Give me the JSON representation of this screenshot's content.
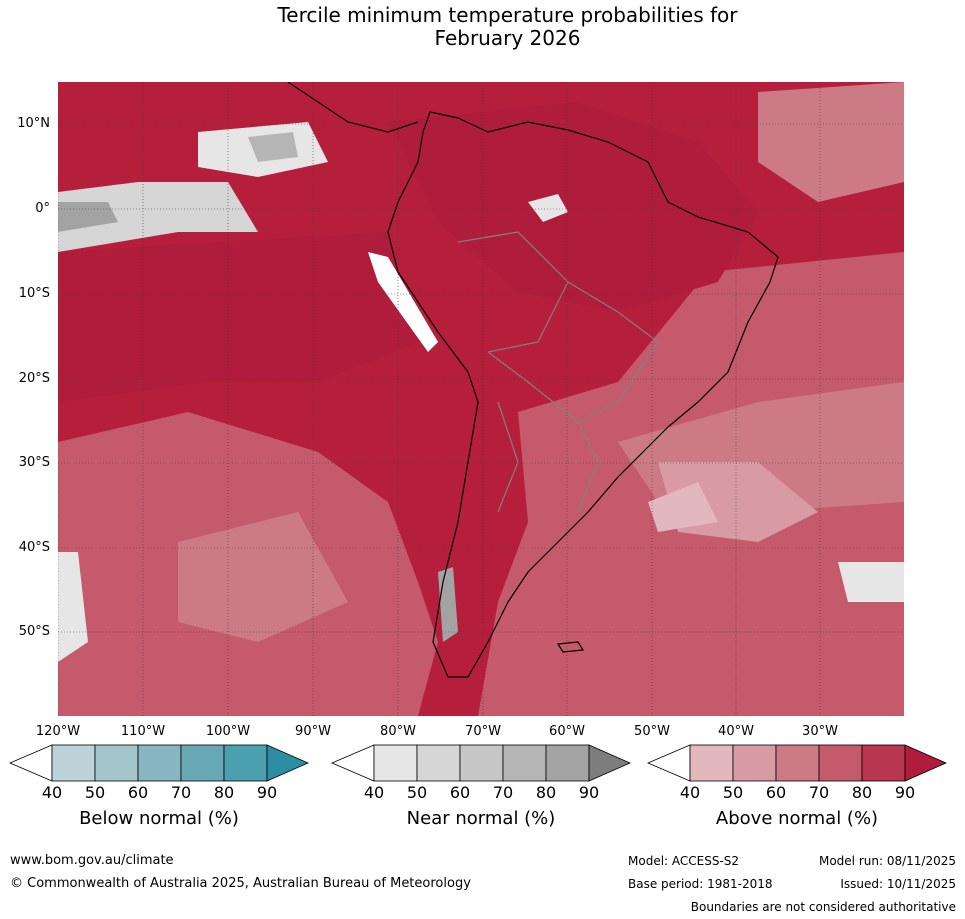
{
  "title": {
    "line1": "Tercile minimum temperature probabilities for",
    "line2": "February 2026"
  },
  "map": {
    "region": "South America and adjacent oceans",
    "latitude_labels": [
      "10°N",
      "0°",
      "10°S",
      "20°S",
      "30°S",
      "40°S",
      "50°S"
    ],
    "longitude_labels": [
      "120°W",
      "110°W",
      "100°W",
      "90°W",
      "80°W",
      "70°W",
      "60°W",
      "50°W",
      "40°W",
      "30°W"
    ]
  },
  "legends": [
    {
      "name": "below",
      "title": "Below normal (%)",
      "ticks": [
        "40",
        "50",
        "60",
        "70",
        "80",
        "90"
      ],
      "colors": [
        "#ffffff",
        "#bdd3d9",
        "#a3c5cc",
        "#87b6c0",
        "#68a8b4",
        "#4c9fae",
        "#2b8ea3"
      ]
    },
    {
      "name": "near",
      "title": "Near normal (%)",
      "ticks": [
        "40",
        "50",
        "60",
        "70",
        "80",
        "90"
      ],
      "colors": [
        "#ffffff",
        "#e6e6e6",
        "#d6d6d6",
        "#c6c6c6",
        "#b5b5b5",
        "#a3a3a3",
        "#7d7d7d"
      ]
    },
    {
      "name": "above",
      "title": "Above normal (%)",
      "ticks": [
        "40",
        "50",
        "60",
        "70",
        "80",
        "90"
      ],
      "colors": [
        "#ffffff",
        "#e2b8bd",
        "#d89aa3",
        "#cc7a86",
        "#c45a6b",
        "#b93650",
        "#b01c3b"
      ]
    }
  ],
  "footer": {
    "website": "www.bom.gov.au/climate",
    "copyright": "© Commonwealth of Australia 2025, Australian Bureau of Meteorology",
    "model": "Model: ACCESS-S2",
    "base_period": "Base period: 1981-2018",
    "model_run": "Model run: 08/11/2025",
    "issued": "Issued: 10/11/2025",
    "disclaimer": "Boundaries are not considered authoritative"
  }
}
